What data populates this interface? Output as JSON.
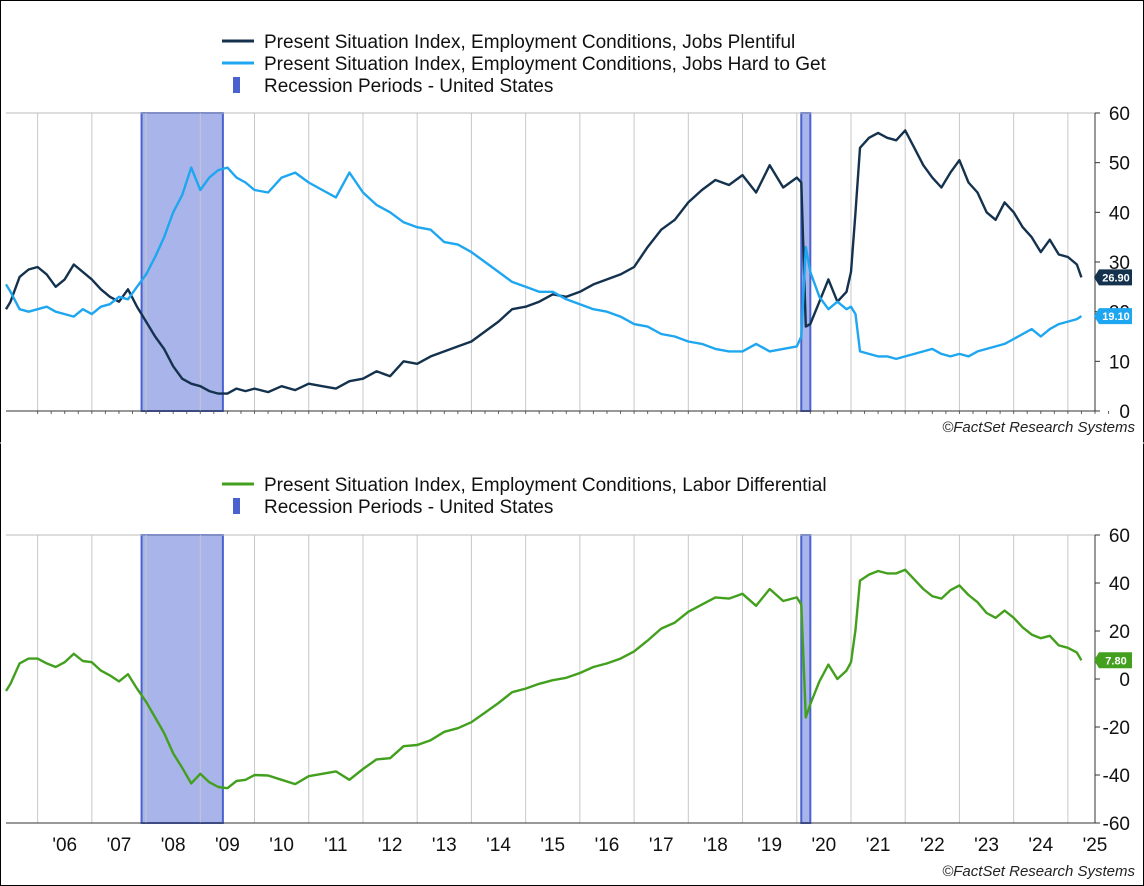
{
  "chart_data": [
    {
      "type": "line",
      "legend": [
        {
          "label": "Present Situation Index, Employment Conditions, Jobs Plentiful",
          "kind": "line",
          "color": "#14324d"
        },
        {
          "label": "Present Situation Index, Employment Conditions, Jobs Hard to Get",
          "kind": "line",
          "color": "#1ea7f0"
        },
        {
          "label": "Recession Periods - United States",
          "kind": "bar",
          "color": "#4a62d0"
        }
      ],
      "legend_placement": "top-center",
      "ylim": [
        0,
        60
      ],
      "yticks": [
        "0",
        "10",
        "20",
        "30",
        "40",
        "50",
        "60"
      ],
      "y_axis_side": "right",
      "grid": "vertical",
      "recessions": [
        [
          2007.917,
          2009.417
        ],
        [
          2020.083,
          2020.25
        ]
      ],
      "series": [
        {
          "name": "Present Situation Index, Employment Conditions, Jobs Plentiful",
          "color": "#14324d",
          "last_label": "26.90",
          "x": [
            2005.417,
            2005.5,
            2005.667,
            2005.833,
            2006.0,
            2006.167,
            2006.333,
            2006.5,
            2006.667,
            2006.833,
            2007.0,
            2007.167,
            2007.333,
            2007.5,
            2007.667,
            2007.833,
            2008.0,
            2008.167,
            2008.333,
            2008.5,
            2008.667,
            2008.833,
            2009.0,
            2009.167,
            2009.333,
            2009.5,
            2009.667,
            2009.833,
            2010.0,
            2010.25,
            2010.5,
            2010.75,
            2011.0,
            2011.25,
            2011.5,
            2011.75,
            2012.0,
            2012.25,
            2012.5,
            2012.75,
            2013.0,
            2013.25,
            2013.5,
            2013.75,
            2014.0,
            2014.25,
            2014.5,
            2014.75,
            2015.0,
            2015.25,
            2015.5,
            2015.75,
            2016.0,
            2016.25,
            2016.5,
            2016.75,
            2017.0,
            2017.25,
            2017.5,
            2017.75,
            2018.0,
            2018.25,
            2018.5,
            2018.75,
            2019.0,
            2019.25,
            2019.5,
            2019.75,
            2020.0,
            2020.083,
            2020.167,
            2020.25,
            2020.417,
            2020.583,
            2020.75,
            2020.917,
            2021.0,
            2021.083,
            2021.167,
            2021.333,
            2021.5,
            2021.667,
            2021.833,
            2022.0,
            2022.167,
            2022.333,
            2022.5,
            2022.667,
            2022.833,
            2023.0,
            2023.167,
            2023.333,
            2023.5,
            2023.667,
            2023.833,
            2024.0,
            2024.167,
            2024.333,
            2024.5,
            2024.667,
            2024.833,
            2025.0,
            2025.167,
            2025.25
          ],
          "y": [
            20.5,
            22.0,
            27.0,
            28.5,
            29.0,
            27.5,
            25.0,
            26.5,
            29.5,
            28.0,
            26.5,
            24.5,
            23.0,
            22.0,
            24.5,
            21.0,
            18.0,
            15.0,
            12.5,
            9.0,
            6.5,
            5.5,
            5.0,
            4.0,
            3.5,
            3.5,
            4.5,
            4.0,
            4.5,
            3.8,
            5.0,
            4.2,
            5.5,
            5.0,
            4.5,
            6.0,
            6.5,
            8.0,
            7.0,
            10.0,
            9.5,
            11.0,
            12.0,
            13.0,
            14.0,
            16.0,
            18.0,
            20.5,
            21.0,
            22.0,
            23.5,
            23.0,
            24.0,
            25.5,
            26.5,
            27.5,
            29.0,
            33.0,
            36.5,
            38.5,
            42.0,
            44.5,
            46.5,
            45.5,
            47.5,
            44.0,
            49.5,
            45.0,
            47.0,
            46.0,
            17.0,
            17.5,
            22.0,
            26.5,
            22.0,
            24.0,
            28.0,
            40.0,
            53.0,
            55.0,
            56.0,
            55.0,
            54.5,
            56.5,
            53.0,
            49.5,
            47.0,
            45.0,
            48.0,
            50.5,
            46.0,
            44.0,
            40.0,
            38.5,
            42.0,
            40.0,
            37.0,
            35.0,
            32.0,
            34.5,
            31.5,
            31.0,
            29.5,
            26.9
          ]
        },
        {
          "name": "Present Situation Index, Employment Conditions, Jobs Hard to Get",
          "color": "#1ea7f0",
          "last_label": "19.10",
          "x": [
            2005.417,
            2005.5,
            2005.667,
            2005.833,
            2006.0,
            2006.167,
            2006.333,
            2006.5,
            2006.667,
            2006.833,
            2007.0,
            2007.167,
            2007.333,
            2007.5,
            2007.667,
            2007.833,
            2008.0,
            2008.167,
            2008.333,
            2008.5,
            2008.667,
            2008.833,
            2009.0,
            2009.167,
            2009.333,
            2009.5,
            2009.667,
            2009.833,
            2010.0,
            2010.25,
            2010.5,
            2010.75,
            2011.0,
            2011.25,
            2011.5,
            2011.75,
            2012.0,
            2012.25,
            2012.5,
            2012.75,
            2013.0,
            2013.25,
            2013.5,
            2013.75,
            2014.0,
            2014.25,
            2014.5,
            2014.75,
            2015.0,
            2015.25,
            2015.5,
            2015.75,
            2016.0,
            2016.25,
            2016.5,
            2016.75,
            2017.0,
            2017.25,
            2017.5,
            2017.75,
            2018.0,
            2018.25,
            2018.5,
            2018.75,
            2019.0,
            2019.25,
            2019.5,
            2019.75,
            2020.0,
            2020.083,
            2020.167,
            2020.25,
            2020.417,
            2020.583,
            2020.75,
            2020.917,
            2021.0,
            2021.083,
            2021.167,
            2021.333,
            2021.5,
            2021.667,
            2021.833,
            2022.0,
            2022.167,
            2022.333,
            2022.5,
            2022.667,
            2022.833,
            2023.0,
            2023.167,
            2023.333,
            2023.5,
            2023.667,
            2023.833,
            2024.0,
            2024.167,
            2024.333,
            2024.5,
            2024.667,
            2024.833,
            2025.0,
            2025.167,
            2025.25
          ],
          "y": [
            25.5,
            24.0,
            20.5,
            20.0,
            20.5,
            21.0,
            20.0,
            19.5,
            19.0,
            20.5,
            19.5,
            21.0,
            21.5,
            23.0,
            22.5,
            25.0,
            27.5,
            31.0,
            35.0,
            40.0,
            43.5,
            49.0,
            44.5,
            47.0,
            48.5,
            49.0,
            47.0,
            46.0,
            44.5,
            44.0,
            47.0,
            48.0,
            46.0,
            44.5,
            43.0,
            48.0,
            44.0,
            41.5,
            40.0,
            38.0,
            37.0,
            36.5,
            34.0,
            33.5,
            32.0,
            30.0,
            28.0,
            26.0,
            25.0,
            24.0,
            24.0,
            22.5,
            21.5,
            20.5,
            20.0,
            19.0,
            17.5,
            17.0,
            15.5,
            15.0,
            14.0,
            13.5,
            12.5,
            12.0,
            12.0,
            13.5,
            12.0,
            12.5,
            13.0,
            15.0,
            33.0,
            28.0,
            23.0,
            20.5,
            22.0,
            20.5,
            21.0,
            19.5,
            12.0,
            11.5,
            11.0,
            11.0,
            10.5,
            11.0,
            11.5,
            12.0,
            12.5,
            11.5,
            11.0,
            11.5,
            11.0,
            12.0,
            12.5,
            13.0,
            13.5,
            14.5,
            15.5,
            16.5,
            15.0,
            16.5,
            17.5,
            18.0,
            18.5,
            19.1
          ]
        }
      ],
      "credit": "©FactSet Research Systems"
    },
    {
      "type": "line",
      "legend": [
        {
          "label": "Present Situation Index, Employment Conditions, Labor Differential",
          "kind": "line",
          "color": "#43a01e"
        },
        {
          "label": "Recession Periods - United States",
          "kind": "bar",
          "color": "#4a62d0"
        }
      ],
      "legend_placement": "top-center",
      "ylim": [
        -60,
        60
      ],
      "yticks": [
        "-60",
        "-40",
        "-20",
        "0",
        "20",
        "40",
        "60"
      ],
      "y_axis_side": "right",
      "grid": "vertical",
      "recessions": [
        [
          2007.917,
          2009.417
        ],
        [
          2020.083,
          2020.25
        ]
      ],
      "xticks": [
        "'06",
        "'07",
        "'08",
        "'09",
        "'10",
        "'11",
        "'12",
        "'13",
        "'14",
        "'15",
        "'16",
        "'17",
        "'18",
        "'19",
        "'20",
        "'21",
        "'22",
        "'23",
        "'24",
        "'25"
      ],
      "xtick_years": [
        2006,
        2007,
        2008,
        2009,
        2010,
        2011,
        2012,
        2013,
        2014,
        2015,
        2016,
        2017,
        2018,
        2019,
        2020,
        2021,
        2022,
        2023,
        2024,
        2025
      ],
      "xlim": [
        2005.417,
        2025.5
      ],
      "series": [
        {
          "name": "Present Situation Index, Employment Conditions, Labor Differential",
          "color": "#43a01e",
          "last_label": "7.80",
          "x": [
            2005.417,
            2005.5,
            2005.667,
            2005.833,
            2006.0,
            2006.167,
            2006.333,
            2006.5,
            2006.667,
            2006.833,
            2007.0,
            2007.167,
            2007.333,
            2007.5,
            2007.667,
            2007.833,
            2008.0,
            2008.167,
            2008.333,
            2008.5,
            2008.667,
            2008.833,
            2009.0,
            2009.167,
            2009.333,
            2009.5,
            2009.667,
            2009.833,
            2010.0,
            2010.25,
            2010.5,
            2010.75,
            2011.0,
            2011.25,
            2011.5,
            2011.75,
            2012.0,
            2012.25,
            2012.5,
            2012.75,
            2013.0,
            2013.25,
            2013.5,
            2013.75,
            2014.0,
            2014.25,
            2014.5,
            2014.75,
            2015.0,
            2015.25,
            2015.5,
            2015.75,
            2016.0,
            2016.25,
            2016.5,
            2016.75,
            2017.0,
            2017.25,
            2017.5,
            2017.75,
            2018.0,
            2018.25,
            2018.5,
            2018.75,
            2019.0,
            2019.25,
            2019.5,
            2019.75,
            2020.0,
            2020.083,
            2020.167,
            2020.25,
            2020.417,
            2020.583,
            2020.75,
            2020.917,
            2021.0,
            2021.083,
            2021.167,
            2021.333,
            2021.5,
            2021.667,
            2021.833,
            2022.0,
            2022.167,
            2022.333,
            2022.5,
            2022.667,
            2022.833,
            2023.0,
            2023.167,
            2023.333,
            2023.5,
            2023.667,
            2023.833,
            2024.0,
            2024.167,
            2024.333,
            2024.5,
            2024.667,
            2024.833,
            2025.0,
            2025.167,
            2025.25
          ],
          "y": [
            -5.0,
            -2.0,
            6.5,
            8.5,
            8.5,
            6.5,
            5.0,
            7.0,
            10.5,
            7.5,
            7.0,
            3.5,
            1.5,
            -1.0,
            2.0,
            -4.0,
            -9.5,
            -16.0,
            -22.5,
            -31.0,
            -37.0,
            -43.5,
            -39.5,
            -43.0,
            -45.0,
            -45.5,
            -42.5,
            -42.0,
            -40.0,
            -40.2,
            -42.0,
            -43.8,
            -40.5,
            -39.5,
            -38.5,
            -42.0,
            -37.5,
            -33.5,
            -33.0,
            -28.0,
            -27.5,
            -25.5,
            -22.0,
            -20.5,
            -18.0,
            -14.0,
            -10.0,
            -5.5,
            -4.0,
            -2.0,
            -0.5,
            0.5,
            2.5,
            5.0,
            6.5,
            8.5,
            11.5,
            16.0,
            21.0,
            23.5,
            28.0,
            31.0,
            34.0,
            33.5,
            35.5,
            30.5,
            37.5,
            32.5,
            34.0,
            31.0,
            -16.0,
            -10.5,
            -1.0,
            6.0,
            0.0,
            3.5,
            7.0,
            20.5,
            41.0,
            43.5,
            45.0,
            44.0,
            44.0,
            45.5,
            41.5,
            37.5,
            34.5,
            33.5,
            37.0,
            39.0,
            35.0,
            32.0,
            27.5,
            25.5,
            28.5,
            25.5,
            21.5,
            18.5,
            17.0,
            18.0,
            14.0,
            13.0,
            11.0,
            7.8
          ]
        }
      ],
      "credit": "©FactSet Research Systems"
    }
  ]
}
